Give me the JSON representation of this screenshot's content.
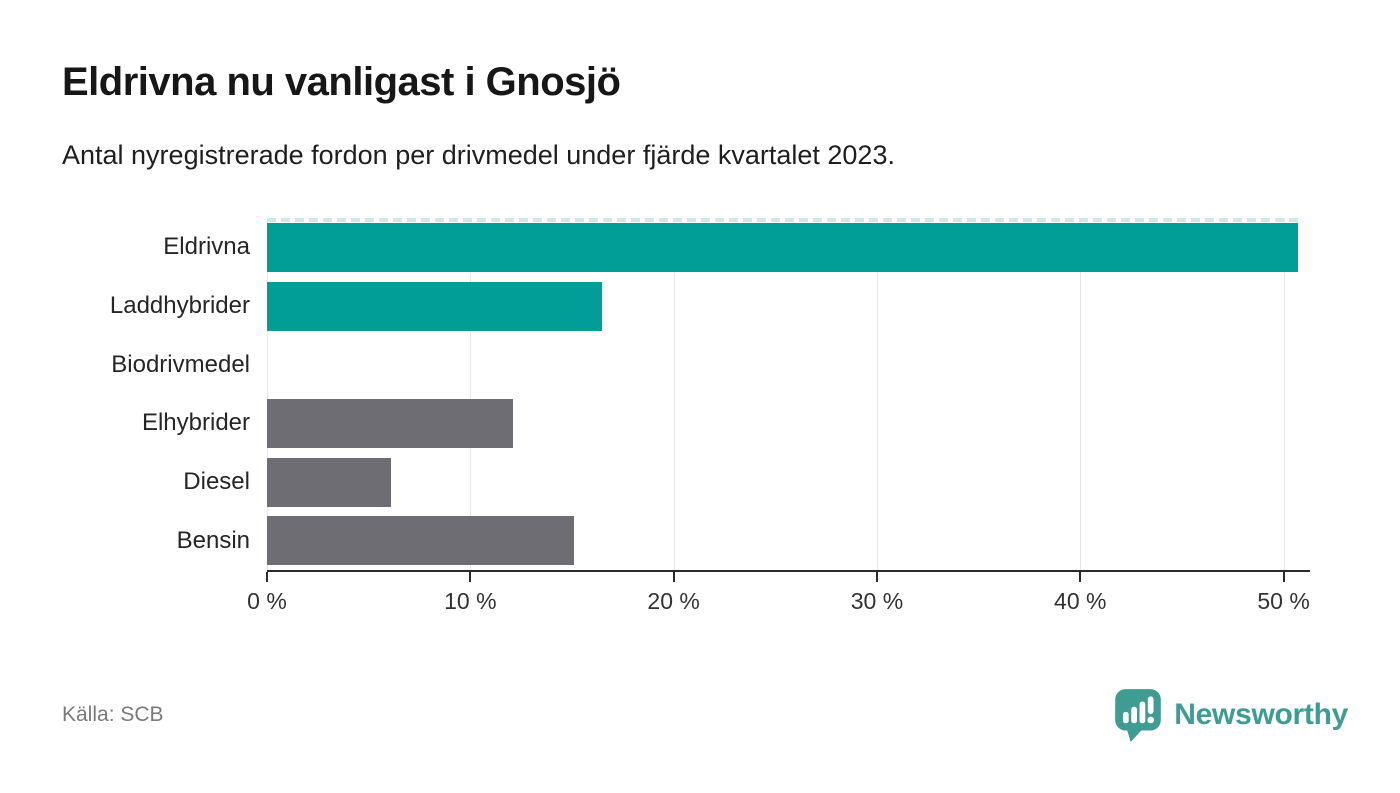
{
  "chart_data": {
    "type": "bar",
    "orientation": "horizontal",
    "title": "Eldrivna nu vanligast i Gnosjö",
    "subtitle": "Antal nyregistrerade fordon per drivmedel under fjärde kvartalet 2023.",
    "categories": [
      "Eldrivna",
      "Laddhybrider",
      "Biodrivmedel",
      "Elhybrider",
      "Diesel",
      "Bensin"
    ],
    "values": [
      50.7,
      16.5,
      0,
      12.1,
      6.1,
      15.1
    ],
    "unit": "%",
    "highlighted": [
      true,
      true,
      false,
      false,
      false,
      false
    ],
    "xlim": [
      0,
      51.3
    ],
    "ticks": [
      0,
      10,
      20,
      30,
      40,
      50
    ],
    "tick_labels": [
      "0 %",
      "10 %",
      "20 %",
      "30 %",
      "40 %",
      "50 %"
    ],
    "grid": "vertical-gridlines-on",
    "legend": "none",
    "colors": {
      "highlight": "#009e96",
      "default": "#6d6d73"
    }
  },
  "colors": {
    "accent_teal": "#009e96",
    "neutral_gray": "#6d6d73",
    "gridline": "#e7e7e7",
    "axis": "#2b2b2b",
    "overflow_dash": "#c7ecea",
    "brand_teal": "#3e9c92"
  },
  "footer": {
    "source": "Källa: SCB",
    "brand": "Newsworthy"
  }
}
